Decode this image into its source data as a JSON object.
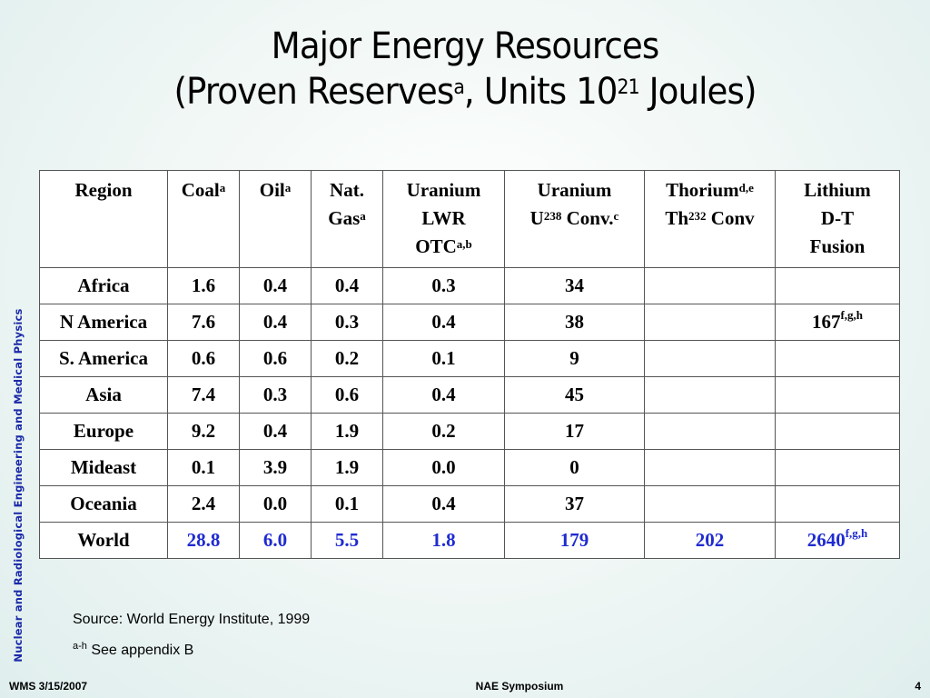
{
  "title": {
    "line1": "Major Energy Resources",
    "line2_pre": "(Proven Reserves",
    "line2_sup": "a",
    "line2_mid": ", Units 10",
    "line2_exp": "21",
    "line2_post": " Joules)"
  },
  "sidebar_text": "Nuclear and Radiological Engineering and Medical Physics",
  "table": {
    "headers": [
      {
        "l1": "Region",
        "sup1": "",
        "l2": "",
        "l3": "",
        "sup3": ""
      },
      {
        "l1": "Coal",
        "sup1": "a",
        "l2": "",
        "l3": "",
        "sup3": ""
      },
      {
        "l1": "Oil",
        "sup1": "a",
        "l2": "",
        "l3": "",
        "sup3": ""
      },
      {
        "l1": "Nat.",
        "sup1": "",
        "l2": "Gas",
        "sup2": "a",
        "l3": "",
        "sup3": ""
      },
      {
        "l1": "Uranium",
        "sup1": "",
        "l2": "LWR",
        "l3": "OTC",
        "sup3": "a,b"
      },
      {
        "l1": "Uranium",
        "sup1": "",
        "l2a": "U",
        "l2sup": "238",
        "l2b": " Conv.",
        "l2sup2": "c"
      },
      {
        "l1": "Thorium",
        "sup1": "d,e",
        "l2a": "Th",
        "l2sup": "232",
        "l2b": " Conv"
      },
      {
        "l1": "Lithium",
        "sup1": "",
        "l2": "D-T",
        "l3": "Fusion",
        "sup3": ""
      }
    ],
    "rows": [
      {
        "region": "Africa",
        "coal": "1.6",
        "oil": "0.4",
        "gas": "0.4",
        "lwr": "0.3",
        "u238": "34",
        "thorium": "",
        "lithium": "",
        "lithium_sup": ""
      },
      {
        "region": "N America",
        "coal": "7.6",
        "oil": "0.4",
        "gas": "0.3",
        "lwr": "0.4",
        "u238": "38",
        "thorium": "",
        "lithium": "167",
        "lithium_sup": "f,g,h"
      },
      {
        "region": "S. America",
        "coal": "0.6",
        "oil": "0.6",
        "gas": "0.2",
        "lwr": "0.1",
        "u238": "9",
        "thorium": "",
        "lithium": "",
        "lithium_sup": ""
      },
      {
        "region": "Asia",
        "coal": "7.4",
        "oil": "0.3",
        "gas": "0.6",
        "lwr": "0.4",
        "u238": "45",
        "thorium": "",
        "lithium": "",
        "lithium_sup": ""
      },
      {
        "region": "Europe",
        "coal": "9.2",
        "oil": "0.4",
        "gas": "1.9",
        "lwr": "0.2",
        "u238": "17",
        "thorium": "",
        "lithium": "",
        "lithium_sup": ""
      },
      {
        "region": "Mideast",
        "coal": "0.1",
        "oil": "3.9",
        "gas": "1.9",
        "lwr": "0.0",
        "u238": "0",
        "thorium": "",
        "lithium": "",
        "lithium_sup": ""
      },
      {
        "region": "Oceania",
        "coal": "2.4",
        "oil": "0.0",
        "gas": "0.1",
        "lwr": "0.4",
        "u238": "37",
        "thorium": "",
        "lithium": "",
        "lithium_sup": ""
      },
      {
        "region": "World",
        "coal": "28.8",
        "oil": "6.0",
        "gas": "5.5",
        "lwr": "1.8",
        "u238": "179",
        "thorium": "202",
        "lithium": "2640",
        "lithium_sup": "f,g,h"
      }
    ],
    "world_color": "#1f2bd0"
  },
  "source": "Source: World Energy Institute, 1999",
  "appendix": {
    "sup": "a-h",
    "text": " See appendix B"
  },
  "footer": {
    "left": "WMS 3/15/2007",
    "center": "NAE Symposium",
    "right": "4"
  }
}
